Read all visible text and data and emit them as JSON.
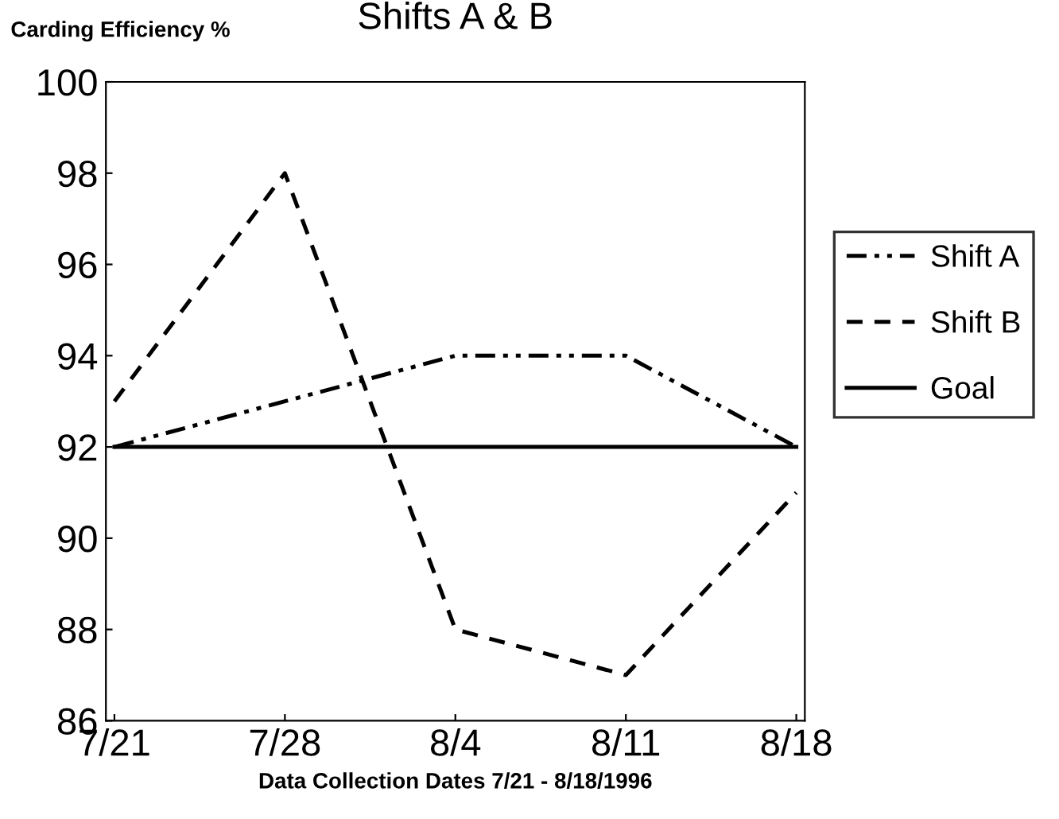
{
  "chart_data": {
    "type": "line",
    "title": "Shifts A & B",
    "ylabel": "Carding Efficiency %",
    "xlabel": "Data Collection Dates 7/21 - 8/18/1996",
    "categories": [
      "7/21",
      "7/28",
      "8/4",
      "8/11",
      "8/18"
    ],
    "series": [
      {
        "name": "Shift A",
        "color": "#000000",
        "line_style": "dashdotdot",
        "values": [
          92,
          93,
          94,
          94,
          92
        ]
      },
      {
        "name": "Shift B",
        "color": "#000000",
        "line_style": "dashed",
        "values": [
          93,
          98,
          88,
          87,
          91
        ]
      },
      {
        "name": "Goal",
        "color": "#000000",
        "line_style": "solid",
        "values": [
          92,
          92,
          92,
          92,
          92
        ]
      }
    ],
    "ylim": [
      86,
      100
    ],
    "yticks": [
      86,
      88,
      90,
      92,
      94,
      96,
      98,
      100
    ],
    "grid": false,
    "legend": "right",
    "marker": "none"
  }
}
